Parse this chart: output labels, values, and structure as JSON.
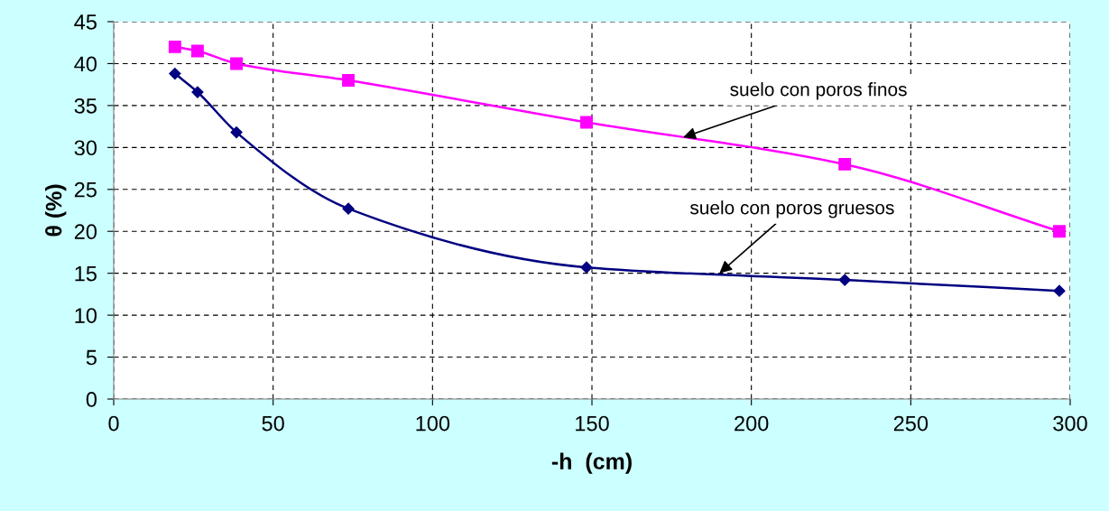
{
  "chart_data": {
    "type": "line",
    "xlabel": "-h  (cm)",
    "ylabel": "θ (%)",
    "xlim": [
      0,
      300
    ],
    "xticks": [
      0,
      50,
      100,
      150,
      200,
      250,
      300
    ],
    "ylim": [
      0,
      45
    ],
    "yticks": [
      0,
      5,
      10,
      15,
      20,
      25,
      30,
      35,
      40,
      45
    ],
    "grid": true,
    "line_style": "solid",
    "series": [
      {
        "color": "#ff00ff",
        "marker": "square",
        "x": [
          19.2,
          26.3,
          38.5,
          73.6,
          148.3,
          229.3,
          296.6
        ],
        "values": [
          42,
          41.5,
          40,
          38,
          33,
          28,
          20
        ]
      },
      {
        "color": "#000080",
        "marker": "diamond",
        "x": [
          19.2,
          26.3,
          38.5,
          73.6,
          148.3,
          229.3,
          296.6
        ],
        "values": [
          38.8,
          36.6,
          31.8,
          22.7,
          15.7,
          14.2,
          12.9
        ]
      }
    ],
    "annotations": [
      {
        "text": "suelo con poros finos",
        "x": 178.6,
        "y": 31.2
      },
      {
        "text": "suelo con poros gruesos",
        "x": 190,
        "y": 15.0
      }
    ]
  }
}
